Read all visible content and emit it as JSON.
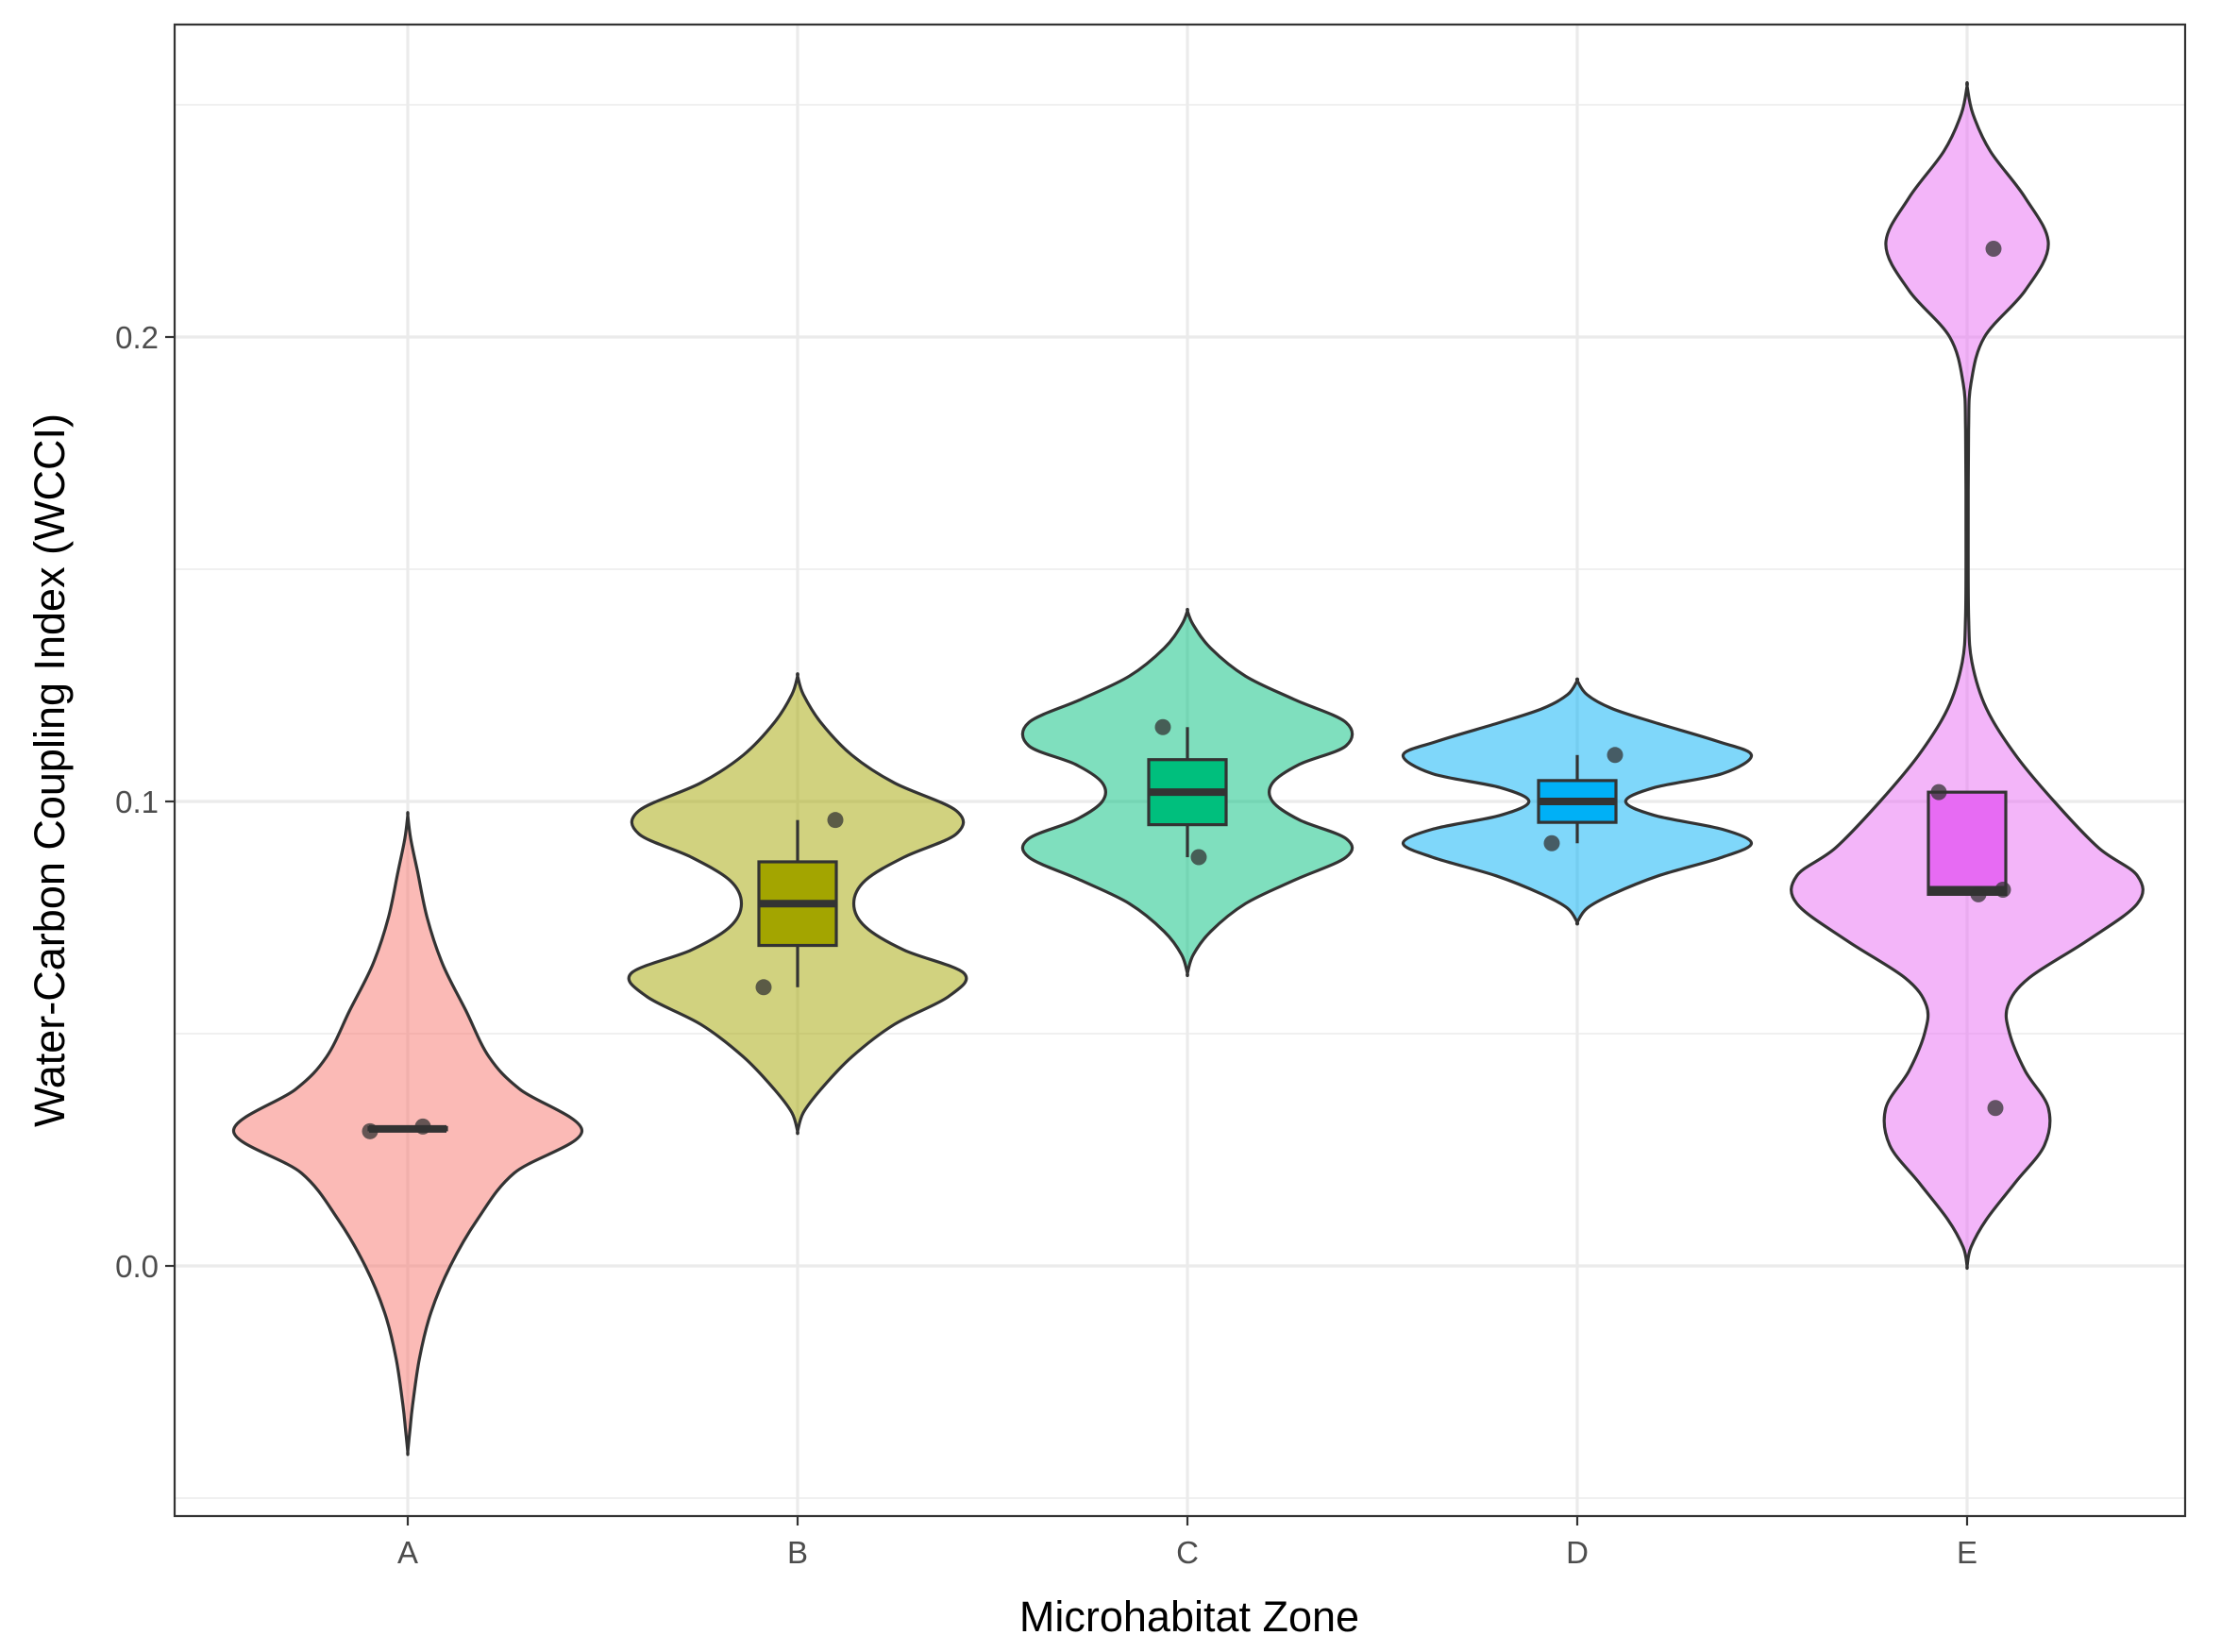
{
  "chart_data": {
    "type": "violin",
    "title": "",
    "xlabel": "Microhabitat Zone",
    "ylabel": "Water-Carbon Coupling Index (WCCI)",
    "ylim": [
      -0.05,
      0.265
    ],
    "y_ticks": [
      {
        "value": 0.0,
        "label": "0.0"
      },
      {
        "value": 0.1,
        "label": "0.1"
      },
      {
        "value": 0.2,
        "label": "0.2"
      }
    ],
    "y_minor_ticks": [
      -0.05,
      0.05,
      0.15,
      0.25
    ],
    "grid": true,
    "categories": [
      "A",
      "B",
      "C",
      "D",
      "E"
    ],
    "groups": [
      {
        "name": "A",
        "fill": "#F8766D",
        "points": [
          0.029,
          0.03
        ],
        "box": {
          "min": 0.029,
          "q1": 0.0293,
          "median": 0.0295,
          "q3": 0.0298,
          "max": 0.03
        },
        "violin": [
          [
            -0.04,
            0.0
          ],
          [
            -0.035,
            0.012
          ],
          [
            -0.03,
            0.025
          ],
          [
            -0.02,
            0.06
          ],
          [
            -0.01,
            0.12
          ],
          [
            0.0,
            0.22
          ],
          [
            0.01,
            0.36
          ],
          [
            0.02,
            0.55
          ],
          [
            0.029,
            0.9
          ],
          [
            0.038,
            0.58
          ],
          [
            0.045,
            0.42
          ],
          [
            0.055,
            0.3
          ],
          [
            0.065,
            0.18
          ],
          [
            0.075,
            0.1
          ],
          [
            0.085,
            0.05
          ],
          [
            0.092,
            0.015
          ],
          [
            0.097,
            0.0
          ]
        ]
      },
      {
        "name": "B",
        "fill": "#A3A500",
        "points": [
          0.06,
          0.096
        ],
        "box": {
          "min": 0.06,
          "q1": 0.069,
          "median": 0.078,
          "q3": 0.087,
          "max": 0.096
        },
        "violin": [
          [
            0.029,
            0.0
          ],
          [
            0.033,
            0.03
          ],
          [
            0.038,
            0.12
          ],
          [
            0.045,
            0.28
          ],
          [
            0.052,
            0.5
          ],
          [
            0.058,
            0.78
          ],
          [
            0.063,
            0.86
          ],
          [
            0.068,
            0.55
          ],
          [
            0.073,
            0.35
          ],
          [
            0.078,
            0.29
          ],
          [
            0.083,
            0.35
          ],
          [
            0.088,
            0.55
          ],
          [
            0.093,
            0.82
          ],
          [
            0.098,
            0.82
          ],
          [
            0.104,
            0.5
          ],
          [
            0.11,
            0.28
          ],
          [
            0.117,
            0.12
          ],
          [
            0.123,
            0.03
          ],
          [
            0.127,
            0.0
          ]
        ]
      },
      {
        "name": "C",
        "fill": "#00BF7D",
        "points": [
          0.088,
          0.116
        ],
        "box": {
          "min": 0.088,
          "q1": 0.095,
          "median": 0.102,
          "q3": 0.109,
          "max": 0.116
        },
        "violin": [
          [
            0.063,
            0.0
          ],
          [
            0.067,
            0.03
          ],
          [
            0.072,
            0.12
          ],
          [
            0.078,
            0.3
          ],
          [
            0.083,
            0.55
          ],
          [
            0.088,
            0.82
          ],
          [
            0.092,
            0.82
          ],
          [
            0.096,
            0.58
          ],
          [
            0.1,
            0.44
          ],
          [
            0.104,
            0.44
          ],
          [
            0.108,
            0.58
          ],
          [
            0.112,
            0.82
          ],
          [
            0.117,
            0.82
          ],
          [
            0.122,
            0.55
          ],
          [
            0.127,
            0.3
          ],
          [
            0.133,
            0.12
          ],
          [
            0.138,
            0.03
          ],
          [
            0.141,
            0.0
          ]
        ]
      },
      {
        "name": "D",
        "fill": "#00B0F6",
        "points": [
          0.091,
          0.11
        ],
        "box": {
          "min": 0.091,
          "q1": 0.0955,
          "median": 0.1,
          "q3": 0.1045,
          "max": 0.11
        },
        "violin": [
          [
            0.074,
            0.0
          ],
          [
            0.077,
            0.05
          ],
          [
            0.08,
            0.18
          ],
          [
            0.084,
            0.42
          ],
          [
            0.088,
            0.75
          ],
          [
            0.091,
            0.9
          ],
          [
            0.094,
            0.75
          ],
          [
            0.097,
            0.4
          ],
          [
            0.1,
            0.25
          ],
          [
            0.103,
            0.4
          ],
          [
            0.106,
            0.75
          ],
          [
            0.11,
            0.9
          ],
          [
            0.113,
            0.72
          ],
          [
            0.117,
            0.4
          ],
          [
            0.12,
            0.18
          ],
          [
            0.123,
            0.05
          ],
          [
            0.126,
            0.0
          ]
        ]
      },
      {
        "name": "E",
        "fill": "#E76BF3",
        "points": [
          0.034,
          0.08,
          0.081,
          0.102,
          0.219
        ],
        "box": {
          "min": 0.08,
          "q1": 0.08,
          "median": 0.081,
          "q3": 0.102,
          "max": 0.102
        },
        "violin": [
          [
            0.0,
            0.0
          ],
          [
            0.004,
            0.02
          ],
          [
            0.01,
            0.1
          ],
          [
            0.018,
            0.25
          ],
          [
            0.026,
            0.4
          ],
          [
            0.034,
            0.42
          ],
          [
            0.042,
            0.3
          ],
          [
            0.05,
            0.22
          ],
          [
            0.056,
            0.21
          ],
          [
            0.062,
            0.32
          ],
          [
            0.07,
            0.62
          ],
          [
            0.078,
            0.88
          ],
          [
            0.084,
            0.88
          ],
          [
            0.09,
            0.68
          ],
          [
            0.1,
            0.45
          ],
          [
            0.11,
            0.25
          ],
          [
            0.12,
            0.1
          ],
          [
            0.13,
            0.025
          ],
          [
            0.14,
            0.008
          ],
          [
            0.16,
            0.006
          ],
          [
            0.18,
            0.008
          ],
          [
            0.19,
            0.02
          ],
          [
            0.2,
            0.09
          ],
          [
            0.21,
            0.3
          ],
          [
            0.22,
            0.42
          ],
          [
            0.23,
            0.3
          ],
          [
            0.24,
            0.12
          ],
          [
            0.248,
            0.03
          ],
          [
            0.254,
            0.0
          ]
        ]
      }
    ]
  }
}
